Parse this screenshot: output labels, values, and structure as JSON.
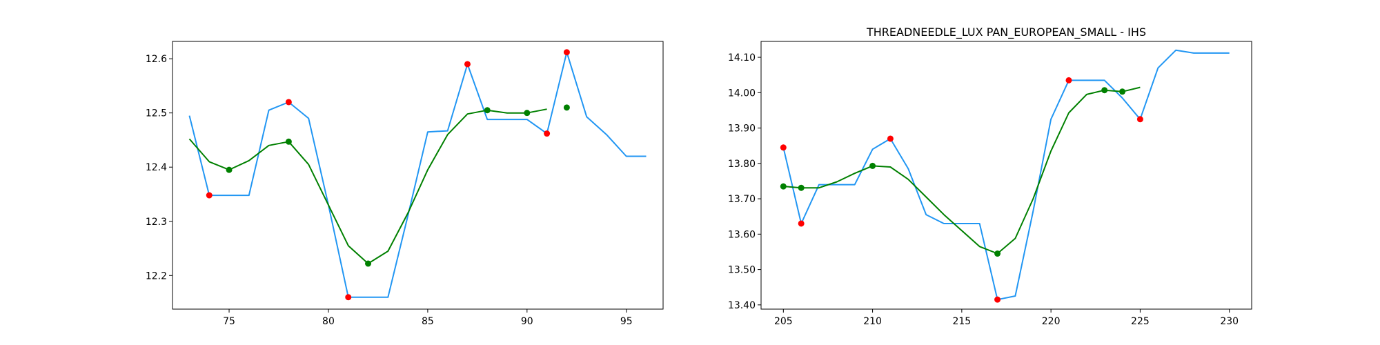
{
  "chart_data": [
    {
      "type": "line",
      "title": "",
      "xlabel": "",
      "ylabel": "",
      "xlim": [
        72.15,
        96.85
      ],
      "ylim": [
        12.138,
        12.632
      ],
      "xticks": [
        75,
        80,
        85,
        90,
        95
      ],
      "yticks": [
        12.2,
        12.3,
        12.4,
        12.5,
        12.6
      ],
      "grid": false,
      "colors": {
        "price": "#2196f3",
        "smooth": "#008000",
        "extrema": "#ff0000",
        "smooth_points": "#008000"
      },
      "series": [
        {
          "role": "price",
          "x": [
            73,
            74,
            75,
            76,
            77,
            78,
            79,
            80,
            81,
            82,
            83,
            84,
            85,
            86,
            87,
            88,
            89,
            90,
            91,
            92,
            93,
            94,
            95,
            96
          ],
          "y": [
            12.495,
            12.348,
            12.348,
            12.348,
            12.505,
            12.52,
            12.49,
            12.33,
            12.16,
            12.16,
            12.16,
            12.31,
            12.465,
            12.467,
            12.59,
            12.488,
            12.488,
            12.488,
            12.462,
            12.612,
            12.493,
            12.46,
            12.42,
            12.42
          ]
        },
        {
          "role": "smooth",
          "x": [
            73,
            74,
            75,
            76,
            77,
            78,
            79,
            80,
            81,
            82,
            83,
            84,
            85,
            86,
            87,
            88,
            89,
            90,
            91
          ],
          "y": [
            12.452,
            12.41,
            12.395,
            12.412,
            12.44,
            12.447,
            12.405,
            12.33,
            12.255,
            12.222,
            12.245,
            12.315,
            12.395,
            12.46,
            12.498,
            12.505,
            12.5,
            12.5,
            12.507
          ]
        }
      ],
      "extrema_points": {
        "x": [
          74,
          78,
          81,
          87,
          91,
          92
        ],
        "y": [
          12.348,
          12.52,
          12.16,
          12.59,
          12.462,
          12.612
        ]
      },
      "smooth_points": {
        "x": [
          75,
          78,
          82,
          88,
          90,
          92
        ],
        "y": [
          12.395,
          12.447,
          12.222,
          12.505,
          12.5,
          12.51
        ]
      }
    },
    {
      "type": "line",
      "title": "THREADNEEDLE_LUX PAN_EUROPEAN_SMALL - IHS",
      "xlabel": "",
      "ylabel": "",
      "xlim": [
        203.75,
        231.25
      ],
      "ylim": [
        13.388,
        14.145
      ],
      "xticks": [
        205,
        210,
        215,
        220,
        225,
        230
      ],
      "yticks": [
        13.4,
        13.5,
        13.6,
        13.7,
        13.8,
        13.9,
        14.0,
        14.1
      ],
      "grid": false,
      "colors": {
        "price": "#2196f3",
        "smooth": "#008000",
        "extrema": "#ff0000",
        "smooth_points": "#008000"
      },
      "series": [
        {
          "role": "price",
          "x": [
            205,
            206,
            207,
            208,
            209,
            210,
            211,
            212,
            213,
            214,
            215,
            216,
            217,
            218,
            219,
            220,
            221,
            222,
            223,
            224,
            225,
            226,
            227,
            228,
            229,
            230
          ],
          "y": [
            13.845,
            13.63,
            13.74,
            13.74,
            13.74,
            13.84,
            13.87,
            13.785,
            13.655,
            13.63,
            13.63,
            13.63,
            13.415,
            13.425,
            13.665,
            13.925,
            14.035,
            14.035,
            14.035,
            13.985,
            13.925,
            14.07,
            14.12,
            14.112,
            14.112,
            14.112
          ]
        },
        {
          "role": "smooth",
          "x": [
            205,
            206,
            207,
            208,
            209,
            210,
            211,
            212,
            213,
            214,
            215,
            216,
            217,
            218,
            219,
            220,
            221,
            222,
            223,
            224,
            225
          ],
          "y": [
            13.735,
            13.731,
            13.731,
            13.748,
            13.772,
            13.793,
            13.79,
            13.755,
            13.705,
            13.655,
            13.61,
            13.565,
            13.545,
            13.588,
            13.7,
            13.835,
            13.943,
            13.995,
            14.007,
            14.003,
            14.015
          ]
        }
      ],
      "extrema_points": {
        "x": [
          205,
          206,
          211,
          217,
          221,
          225
        ],
        "y": [
          13.845,
          13.63,
          13.87,
          13.415,
          14.035,
          13.925
        ]
      },
      "smooth_points": {
        "x": [
          205,
          206,
          210,
          217,
          223,
          224
        ],
        "y": [
          13.735,
          13.731,
          13.793,
          13.545,
          14.007,
          14.003
        ]
      }
    }
  ]
}
